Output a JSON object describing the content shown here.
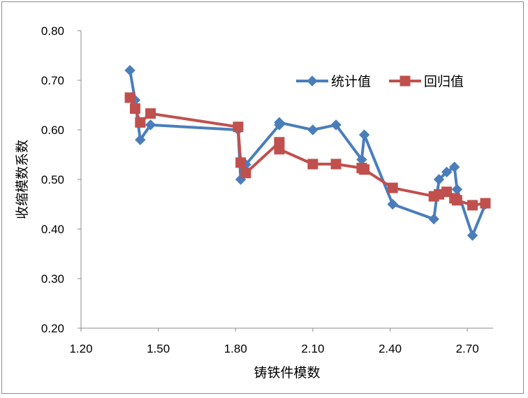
{
  "chart_data": {
    "type": "line",
    "xlabel": "铸铁件模数",
    "ylabel": "收缩模数系数",
    "xlim": [
      1.2,
      2.8
    ],
    "ylim": [
      0.2,
      0.8
    ],
    "x_ticks": [
      "1.20",
      "1.50",
      "1.80",
      "2.10",
      "2.40",
      "2.70"
    ],
    "y_ticks": [
      "0.20",
      "0.30",
      "0.40",
      "0.50",
      "0.60",
      "0.70",
      "0.80"
    ],
    "grid": false,
    "legend_position": "top-right",
    "series": [
      {
        "name": "统计值",
        "color": "#4a7ebb",
        "marker": "diamond",
        "points": [
          [
            1.39,
            0.72
          ],
          [
            1.41,
            0.66
          ],
          [
            1.43,
            0.58
          ],
          [
            1.47,
            0.61
          ],
          [
            1.81,
            0.6
          ],
          [
            1.82,
            0.5
          ],
          [
            1.84,
            0.53
          ],
          [
            1.97,
            0.61
          ],
          [
            1.97,
            0.615
          ],
          [
            2.1,
            0.6
          ],
          [
            2.19,
            0.61
          ],
          [
            2.29,
            0.54
          ],
          [
            2.3,
            0.59
          ],
          [
            2.41,
            0.45
          ],
          [
            2.57,
            0.42
          ],
          [
            2.59,
            0.5
          ],
          [
            2.62,
            0.515
          ],
          [
            2.65,
            0.525
          ],
          [
            2.66,
            0.48
          ],
          [
            2.72,
            0.387
          ],
          [
            2.77,
            0.45
          ]
        ]
      },
      {
        "name": "回归值",
        "color": "#c0504d",
        "marker": "square",
        "points": [
          [
            1.39,
            0.665
          ],
          [
            1.41,
            0.643
          ],
          [
            1.43,
            0.615
          ],
          [
            1.47,
            0.633
          ],
          [
            1.81,
            0.606
          ],
          [
            1.82,
            0.534
          ],
          [
            1.84,
            0.513
          ],
          [
            1.97,
            0.575
          ],
          [
            1.97,
            0.561
          ],
          [
            2.1,
            0.531
          ],
          [
            2.19,
            0.531
          ],
          [
            2.29,
            0.523
          ],
          [
            2.3,
            0.52
          ],
          [
            2.41,
            0.483
          ],
          [
            2.57,
            0.466
          ],
          [
            2.59,
            0.47
          ],
          [
            2.62,
            0.475
          ],
          [
            2.65,
            0.462
          ],
          [
            2.66,
            0.458
          ],
          [
            2.72,
            0.448
          ],
          [
            2.77,
            0.452
          ]
        ]
      }
    ]
  }
}
